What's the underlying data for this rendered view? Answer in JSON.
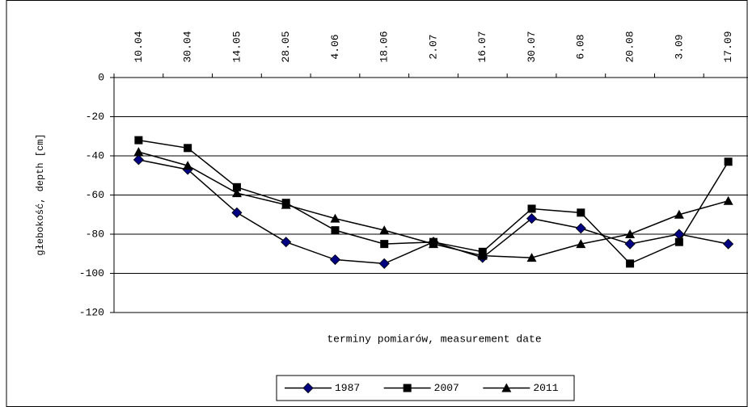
{
  "chart_data": {
    "type": "line",
    "x_label": "terminy pomiarów, measurement date",
    "y_label": "głebokość, depth [cm]",
    "categories": [
      "10.04",
      "30.04",
      "14.05",
      "28.05",
      "4.06",
      "18.06",
      "2.07",
      "16.07",
      "30.07",
      "6.08",
      "20.08",
      "3.09",
      "17.09"
    ],
    "series": [
      {
        "name": "1987",
        "color": "#000080",
        "marker": "diamond",
        "values": [
          -42,
          -47,
          -69,
          -84,
          -93,
          -95,
          -84,
          -92,
          -72,
          -77,
          -85,
          -80,
          -85
        ]
      },
      {
        "name": "2007",
        "color": "#000000",
        "marker": "square",
        "values": [
          -32,
          -36,
          -56,
          -64,
          -78,
          -85,
          -84,
          -89,
          -67,
          -69,
          -95,
          -84,
          -43
        ]
      },
      {
        "name": "2011",
        "color": "#000000",
        "marker": "triangle",
        "values": [
          -38,
          -45,
          -59,
          -65,
          -72,
          -78,
          -85,
          -91,
          -92,
          -85,
          -80,
          -70,
          -63
        ]
      }
    ],
    "ylim": [
      -120,
      0
    ],
    "yticks": [
      0,
      -20,
      -40,
      -60,
      -80,
      -100,
      -120
    ],
    "grid": true,
    "legend": "bottom"
  }
}
